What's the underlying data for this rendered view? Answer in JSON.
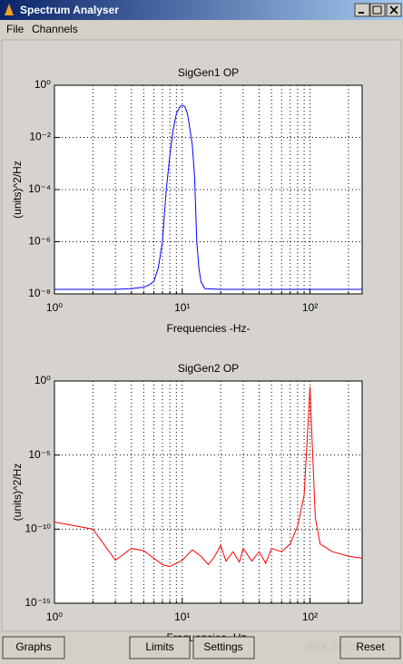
{
  "window": {
    "title": "Spectrum Analyser",
    "menu": [
      "File",
      "Channels"
    ],
    "buttons": [
      "Graphs",
      "Limits",
      "Settings",
      "Reset"
    ],
    "watermark": "BBK Services Ltd"
  },
  "chart_data": [
    {
      "type": "line",
      "title": "SigGen1 OP",
      "x_label": "Frequencies -Hz-",
      "y_label": "(units)^2/Hz",
      "xscale": "log",
      "yscale": "log",
      "grid": true,
      "xlim": [
        1,
        256
      ],
      "ylim": [
        1e-08,
        1
      ],
      "xticks": [
        {
          "value": 1,
          "label": "10⁰"
        },
        {
          "value": 10,
          "label": "10¹"
        },
        {
          "value": 100,
          "label": "10²"
        }
      ],
      "xminorticks": [
        2,
        3,
        4,
        5,
        6,
        7,
        8,
        9,
        20,
        30,
        40,
        50,
        60,
        70,
        80,
        90,
        200
      ],
      "yticks": [
        {
          "value": 1e-08,
          "label": "10⁻⁸"
        },
        {
          "value": 1e-06,
          "label": "10⁻⁶"
        },
        {
          "value": 0.0001,
          "label": "10⁻⁴"
        },
        {
          "value": 0.01,
          "label": "10⁻²"
        },
        {
          "value": 1,
          "label": "10⁰"
        }
      ],
      "x": [
        1,
        2,
        3,
        4,
        5,
        5.5,
        6,
        6.5,
        7,
        7.5,
        8,
        8.5,
        9,
        9.5,
        10,
        10.5,
        11,
        11.5,
        12,
        12.5,
        13,
        13.5,
        14,
        15,
        20,
        50,
        100,
        256
      ],
      "series": [
        {
          "color": "#0000ff",
          "values": [
            1.5e-08,
            1.5e-08,
            1.5e-08,
            1.6e-08,
            1.8e-08,
            2.2e-08,
            3e-08,
            1e-07,
            1e-06,
            0.0001,
            0.002,
            0.02,
            0.08,
            0.14,
            0.17,
            0.15,
            0.08,
            0.02,
            0.005,
            0.0003,
            1e-06,
            1e-07,
            3e-08,
            1.6e-08,
            1.5e-08,
            1.5e-08,
            1.5e-08,
            1.5e-08
          ]
        }
      ]
    },
    {
      "type": "line",
      "title": "SigGen2 OP",
      "x_label": "Frequencies -Hz-",
      "y_label": "(units)^2/Hz",
      "xscale": "log",
      "yscale": "log",
      "grid": true,
      "xlim": [
        1,
        256
      ],
      "ylim": [
        1e-15,
        1
      ],
      "xticks": [
        {
          "value": 1,
          "label": "10⁰"
        },
        {
          "value": 10,
          "label": "10¹"
        },
        {
          "value": 100,
          "label": "10²"
        }
      ],
      "xminorticks": [
        2,
        3,
        4,
        5,
        6,
        7,
        8,
        9,
        20,
        30,
        40,
        50,
        60,
        70,
        80,
        90,
        200
      ],
      "yticks": [
        {
          "value": 1e-15,
          "label": "10⁻¹⁵"
        },
        {
          "value": 1e-10,
          "label": "10⁻¹⁰"
        },
        {
          "value": 1e-05,
          "label": "10⁻⁵"
        },
        {
          "value": 1,
          "label": "10⁰"
        }
      ],
      "x": [
        1,
        2,
        3,
        4,
        5,
        7,
        8,
        9,
        10,
        12,
        14,
        16,
        18,
        20,
        22,
        25,
        28,
        30,
        35,
        40,
        45,
        50,
        60,
        70,
        80,
        90,
        95,
        100,
        105,
        110,
        120,
        150,
        200,
        256
      ],
      "series": [
        {
          "color": "#ff0000",
          "values": [
            3e-10,
            1e-10,
            8e-13,
            5e-12,
            3.5e-12,
            4e-13,
            3e-13,
            5e-13,
            8e-13,
            4e-12,
            1.5e-12,
            4e-13,
            1.5e-12,
            8e-12,
            7e-13,
            3e-12,
            6e-13,
            5e-12,
            7e-13,
            3e-12,
            5e-13,
            5e-12,
            3e-12,
            1e-11,
            1.6e-10,
            2e-08,
            0.0001,
            0.4,
            1e-05,
            6e-10,
            1e-11,
            3e-12,
            1.5e-12,
            1.1e-12
          ]
        }
      ]
    }
  ]
}
